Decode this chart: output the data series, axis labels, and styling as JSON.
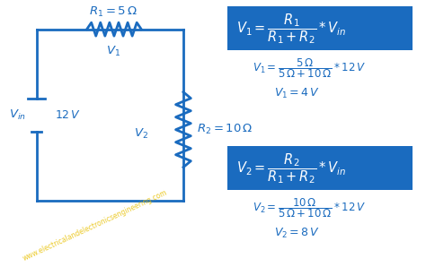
{
  "bg_color": "#ffffff",
  "circuit_color": "#1a6bbf",
  "box_color": "#1a6bbf",
  "text_color": "#1a6bbf",
  "white_color": "#ffffff",
  "yellow_color": "#e8c000",
  "figsize": [
    4.74,
    2.98
  ],
  "dpi": 100,
  "watermark": "www.electricalandelectronicsengineering.com"
}
